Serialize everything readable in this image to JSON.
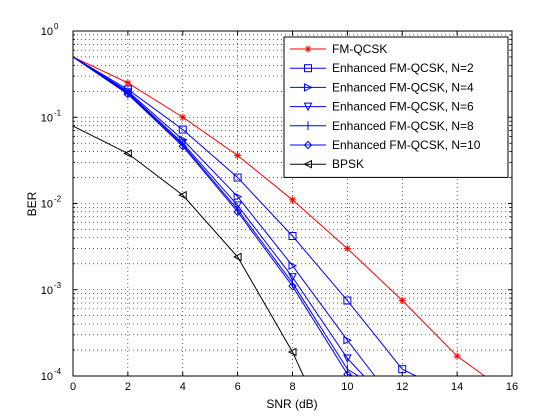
{
  "chart_data": {
    "type": "line",
    "title": "",
    "xlabel": "SNR (dB)",
    "ylabel": "BER",
    "xlim": [
      0,
      16
    ],
    "ylim": [
      0.0001,
      1
    ],
    "yscale": "log",
    "grid": true,
    "legend_position": "top-right",
    "x_ticks": [
      "0",
      "2",
      "4",
      "6",
      "8",
      "10",
      "12",
      "14",
      "16"
    ],
    "y_tick_exponents": [
      "-4",
      "-3",
      "-2",
      "-1",
      "0"
    ],
    "series": [
      {
        "name": "FM-QCSK",
        "color": "#ff0000",
        "marker": "star",
        "x": [
          0,
          2,
          4,
          6,
          8,
          10,
          12,
          14,
          15
        ],
        "y": [
          0.5,
          0.25,
          0.1,
          0.036,
          0.011,
          0.003,
          0.00075,
          0.00017,
          0.0001
        ]
      },
      {
        "name": "Enhanced FM-QCSK, N=2",
        "color": "#0000ff",
        "marker": "square",
        "x": [
          0,
          2,
          4,
          6,
          8,
          10,
          12,
          12.5
        ],
        "y": [
          0.5,
          0.21,
          0.072,
          0.02,
          0.0042,
          0.00075,
          0.00012,
          0.0001
        ]
      },
      {
        "name": "Enhanced FM-QCSK, N=4",
        "color": "#0000ff",
        "marker": "triangle-right",
        "x": [
          0,
          2,
          4,
          6,
          8,
          10,
          11
        ],
        "y": [
          0.5,
          0.2,
          0.055,
          0.012,
          0.0019,
          0.00026,
          0.0001
        ]
      },
      {
        "name": "Enhanced FM-QCSK, N=6",
        "color": "#0000ff",
        "marker": "triangle-down",
        "x": [
          0,
          2,
          4,
          6,
          8,
          10,
          10.6
        ],
        "y": [
          0.5,
          0.195,
          0.05,
          0.0095,
          0.0014,
          0.00016,
          0.0001
        ]
      },
      {
        "name": "Enhanced FM-QCSK, N=8",
        "color": "#0000ff",
        "marker": "vline",
        "x": [
          0,
          2,
          4,
          6,
          8,
          10,
          10.4
        ],
        "y": [
          0.5,
          0.19,
          0.048,
          0.0085,
          0.0012,
          0.00012,
          0.0001
        ]
      },
      {
        "name": "Enhanced FM-QCSK, N=10",
        "color": "#0000ff",
        "marker": "diamond",
        "x": [
          0,
          2,
          4,
          6,
          8,
          10,
          10.2
        ],
        "y": [
          0.5,
          0.185,
          0.046,
          0.008,
          0.0011,
          0.000105,
          0.0001
        ]
      },
      {
        "name": "BPSK",
        "color": "#000000",
        "marker": "triangle-left",
        "x": [
          0,
          2,
          4,
          6,
          8,
          8.4
        ],
        "y": [
          0.079,
          0.038,
          0.0125,
          0.0024,
          0.00019,
          0.0001
        ]
      }
    ]
  }
}
